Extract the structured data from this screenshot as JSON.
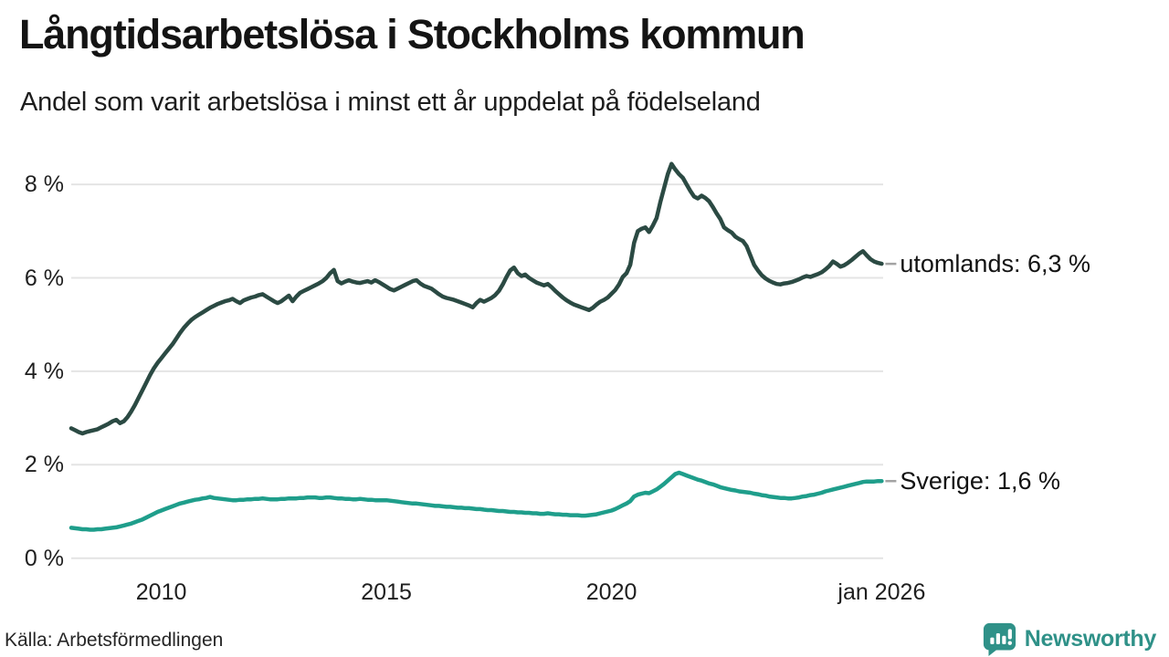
{
  "title": "Långtidsarbetslösa i Stockholms kommun",
  "subtitle": "Andel som varit arbetslösa i minst ett år uppdelat på födelseland",
  "source": "Källa: Arbetsförmedlingen",
  "brand": {
    "name": "Newsworthy",
    "icon": "speech-bubble-bar-chart-icon",
    "color": "#2f9188"
  },
  "colors": {
    "utomlands": "#2b4a43",
    "sverige": "#1f9e8b",
    "grid": "#e4e4e4",
    "leader": "#a3a3a3"
  },
  "chart_data": {
    "type": "line",
    "title": "Långtidsarbetslösa i Stockholms kommun",
    "subtitle": "Andel som varit arbetslösa i minst ett år uppdelat på födelseland",
    "xlabel": "",
    "ylabel": "",
    "ylim": [
      0,
      8.8
    ],
    "grid": "horizontal",
    "legend_position": "right-of-line-end",
    "x_unit": "monthly",
    "x_start_year": 2008,
    "x_end_year": 2026,
    "y_gridlines": [
      {
        "value": 8,
        "label": "8 %"
      },
      {
        "value": 6,
        "label": "6 %"
      },
      {
        "value": 4,
        "label": "4 %"
      },
      {
        "value": 2,
        "label": "2 %"
      },
      {
        "value": 0,
        "label": "0 %"
      }
    ],
    "x_ticks": [
      {
        "x": 2010,
        "label": "2010"
      },
      {
        "x": 2015,
        "label": "2015"
      },
      {
        "x": 2020,
        "label": "2020"
      },
      {
        "x": 2026,
        "label": "jan 2026"
      }
    ],
    "series": [
      {
        "name": "utomlands",
        "legend": "utomlands: 6,3 %",
        "latest_value": "6,3 %",
        "color": "#2b4a43",
        "values": [
          2.78,
          2.74,
          2.7,
          2.67,
          2.7,
          2.72,
          2.74,
          2.76,
          2.8,
          2.84,
          2.88,
          2.93,
          2.96,
          2.89,
          2.93,
          3.02,
          3.14,
          3.28,
          3.44,
          3.6,
          3.76,
          3.92,
          4.06,
          4.18,
          4.28,
          4.38,
          4.48,
          4.58,
          4.7,
          4.82,
          4.93,
          5.02,
          5.1,
          5.16,
          5.21,
          5.26,
          5.31,
          5.36,
          5.4,
          5.44,
          5.47,
          5.5,
          5.52,
          5.55,
          5.5,
          5.46,
          5.52,
          5.55,
          5.58,
          5.6,
          5.63,
          5.65,
          5.6,
          5.55,
          5.5,
          5.46,
          5.5,
          5.56,
          5.62,
          5.5,
          5.6,
          5.68,
          5.72,
          5.76,
          5.8,
          5.84,
          5.88,
          5.93,
          6.0,
          6.1,
          6.17,
          5.93,
          5.88,
          5.92,
          5.95,
          5.92,
          5.9,
          5.89,
          5.91,
          5.93,
          5.9,
          5.95,
          5.91,
          5.86,
          5.81,
          5.76,
          5.73,
          5.77,
          5.81,
          5.85,
          5.89,
          5.93,
          5.95,
          5.88,
          5.83,
          5.8,
          5.77,
          5.71,
          5.65,
          5.6,
          5.57,
          5.55,
          5.53,
          5.5,
          5.47,
          5.44,
          5.41,
          5.37,
          5.46,
          5.53,
          5.49,
          5.53,
          5.57,
          5.63,
          5.72,
          5.86,
          6.02,
          6.16,
          6.22,
          6.1,
          6.04,
          6.07,
          6.0,
          5.95,
          5.9,
          5.87,
          5.84,
          5.87,
          5.8,
          5.72,
          5.65,
          5.58,
          5.52,
          5.47,
          5.43,
          5.4,
          5.37,
          5.34,
          5.31,
          5.36,
          5.43,
          5.49,
          5.53,
          5.58,
          5.66,
          5.74,
          5.86,
          6.02,
          6.1,
          6.28,
          6.75,
          7.0,
          7.05,
          7.08,
          6.98,
          7.12,
          7.28,
          7.62,
          7.92,
          8.22,
          8.44,
          8.32,
          8.22,
          8.14,
          8.0,
          7.86,
          7.74,
          7.7,
          7.76,
          7.71,
          7.64,
          7.52,
          7.38,
          7.26,
          7.08,
          7.02,
          6.97,
          6.88,
          6.83,
          6.79,
          6.68,
          6.48,
          6.28,
          6.16,
          6.06,
          5.99,
          5.94,
          5.9,
          5.87,
          5.86,
          5.88,
          5.89,
          5.91,
          5.94,
          5.97,
          6.01,
          6.04,
          6.02,
          6.05,
          6.08,
          6.12,
          6.18,
          6.25,
          6.35,
          6.3,
          6.24,
          6.27,
          6.32,
          6.38,
          6.45,
          6.52,
          6.57,
          6.48,
          6.4,
          6.35,
          6.32,
          6.3
        ]
      },
      {
        "name": "Sverige",
        "legend": "Sverige: 1,6 %",
        "latest_value": "1,6 %",
        "color": "#1f9e8b",
        "values": [
          0.65,
          0.64,
          0.63,
          0.62,
          0.62,
          0.61,
          0.61,
          0.62,
          0.62,
          0.63,
          0.64,
          0.65,
          0.66,
          0.68,
          0.7,
          0.72,
          0.74,
          0.77,
          0.8,
          0.83,
          0.87,
          0.91,
          0.95,
          0.99,
          1.02,
          1.05,
          1.08,
          1.11,
          1.14,
          1.17,
          1.19,
          1.21,
          1.23,
          1.25,
          1.26,
          1.28,
          1.29,
          1.31,
          1.29,
          1.28,
          1.27,
          1.26,
          1.25,
          1.24,
          1.24,
          1.25,
          1.25,
          1.26,
          1.26,
          1.27,
          1.27,
          1.28,
          1.27,
          1.26,
          1.26,
          1.26,
          1.27,
          1.27,
          1.28,
          1.28,
          1.28,
          1.29,
          1.29,
          1.3,
          1.3,
          1.3,
          1.29,
          1.29,
          1.3,
          1.3,
          1.29,
          1.28,
          1.28,
          1.27,
          1.27,
          1.26,
          1.26,
          1.27,
          1.26,
          1.25,
          1.25,
          1.24,
          1.24,
          1.24,
          1.24,
          1.23,
          1.22,
          1.21,
          1.2,
          1.19,
          1.18,
          1.17,
          1.17,
          1.16,
          1.15,
          1.14,
          1.13,
          1.12,
          1.12,
          1.11,
          1.1,
          1.1,
          1.09,
          1.08,
          1.08,
          1.07,
          1.07,
          1.06,
          1.05,
          1.05,
          1.04,
          1.03,
          1.03,
          1.02,
          1.01,
          1.01,
          1.0,
          0.99,
          0.99,
          0.98,
          0.98,
          0.97,
          0.97,
          0.96,
          0.96,
          0.95,
          0.95,
          0.96,
          0.95,
          0.94,
          0.94,
          0.93,
          0.93,
          0.92,
          0.92,
          0.92,
          0.91,
          0.91,
          0.92,
          0.93,
          0.94,
          0.96,
          0.98,
          1.0,
          1.02,
          1.05,
          1.09,
          1.13,
          1.17,
          1.22,
          1.32,
          1.36,
          1.38,
          1.4,
          1.39,
          1.43,
          1.47,
          1.53,
          1.59,
          1.66,
          1.73,
          1.8,
          1.83,
          1.8,
          1.77,
          1.74,
          1.71,
          1.68,
          1.66,
          1.63,
          1.6,
          1.58,
          1.55,
          1.52,
          1.5,
          1.48,
          1.46,
          1.45,
          1.43,
          1.42,
          1.41,
          1.4,
          1.38,
          1.37,
          1.35,
          1.34,
          1.32,
          1.31,
          1.3,
          1.29,
          1.29,
          1.28,
          1.28,
          1.29,
          1.3,
          1.32,
          1.33,
          1.35,
          1.36,
          1.38,
          1.4,
          1.43,
          1.45,
          1.47,
          1.49,
          1.51,
          1.53,
          1.55,
          1.57,
          1.59,
          1.61,
          1.63,
          1.64,
          1.64,
          1.64,
          1.65,
          1.65
        ]
      }
    ]
  }
}
